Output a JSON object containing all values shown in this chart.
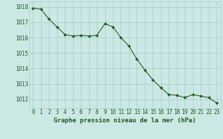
{
  "x": [
    0,
    1,
    2,
    3,
    4,
    5,
    6,
    7,
    8,
    9,
    10,
    11,
    12,
    13,
    14,
    15,
    16,
    17,
    18,
    19,
    20,
    21,
    22,
    23
  ],
  "y": [
    1017.9,
    1017.85,
    1017.2,
    1016.7,
    1016.2,
    1016.1,
    1016.15,
    1016.1,
    1016.15,
    1016.9,
    1016.7,
    1016.0,
    1015.45,
    1014.6,
    1013.9,
    1013.25,
    1012.75,
    1012.3,
    1012.25,
    1012.1,
    1012.3,
    1012.2,
    1012.1,
    1011.75
  ],
  "line_color": "#1a5c1a",
  "marker_color": "#1a5c1a",
  "bg_color": "#cce8e4",
  "grid_color": "#99cccc",
  "text_color": "#1a5c1a",
  "xlabel": "Graphe pression niveau de la mer (hPa)",
  "ylim_min": 1011.4,
  "ylim_max": 1018.35,
  "yticks": [
    1012,
    1013,
    1014,
    1015,
    1016,
    1017,
    1018
  ],
  "xticks": [
    0,
    1,
    2,
    3,
    4,
    5,
    6,
    7,
    8,
    9,
    10,
    11,
    12,
    13,
    14,
    15,
    16,
    17,
    18,
    19,
    20,
    21,
    22,
    23
  ],
  "tick_fontsize": 5.5,
  "label_fontsize": 6.5
}
